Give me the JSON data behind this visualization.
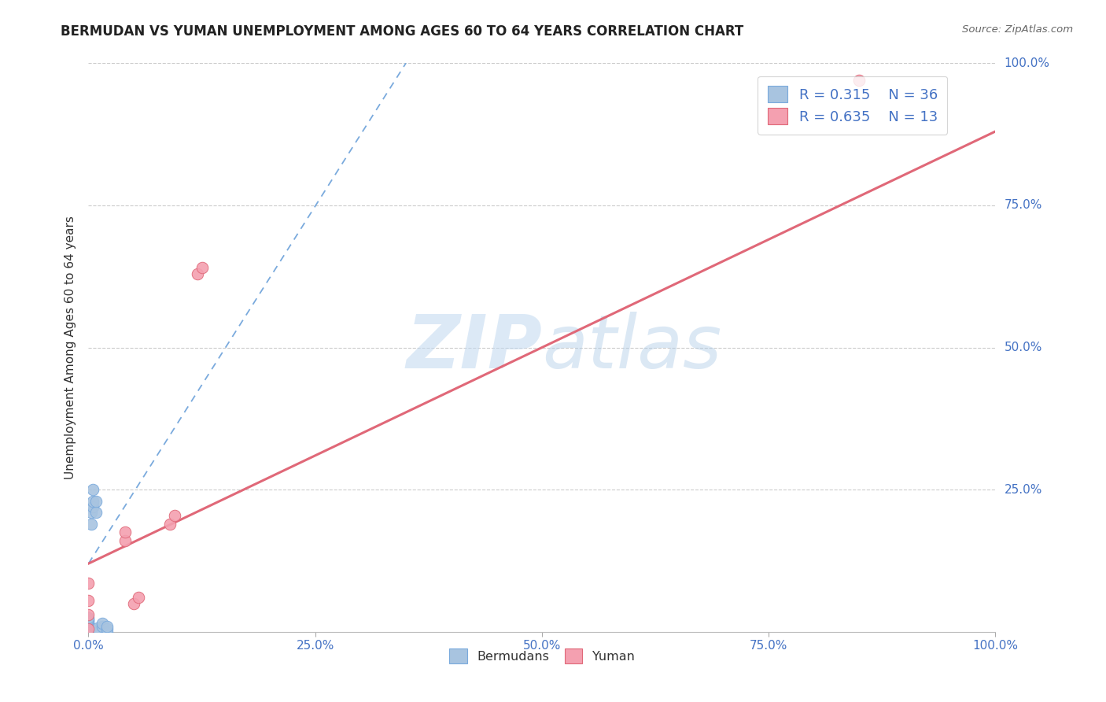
{
  "title": "BERMUDAN VS YUMAN UNEMPLOYMENT AMONG AGES 60 TO 64 YEARS CORRELATION CHART",
  "source": "Source: ZipAtlas.com",
  "ylabel": "Unemployment Among Ages 60 to 64 years",
  "watermark": "ZIPatlas",
  "legend_r_blue": "R = 0.315",
  "legend_n_blue": "N = 36",
  "legend_r_pink": "R = 0.635",
  "legend_n_pink": "N = 13",
  "legend_label_blue": "Bermudans",
  "legend_label_pink": "Yuman",
  "blue_color": "#a8c4e0",
  "pink_color": "#f4a0b0",
  "blue_line_color": "#7aaadd",
  "pink_line_color": "#e06878",
  "text_color_blue": "#4472c4",
  "title_color": "#222222",
  "xlim": [
    0,
    1
  ],
  "ylim": [
    0,
    1
  ],
  "xticks": [
    0.0,
    0.25,
    0.5,
    0.75,
    1.0
  ],
  "yticks": [
    0.25,
    0.5,
    0.75,
    1.0
  ],
  "xtick_labels": [
    "0.0%",
    "25.0%",
    "50.0%",
    "75.0%",
    "100.0%"
  ],
  "ytick_labels_right": [
    "25.0%",
    "50.0%",
    "75.0%",
    "100.0%"
  ],
  "blue_scatter_x": [
    0.0,
    0.0,
    0.0,
    0.0,
    0.0,
    0.0,
    0.0,
    0.0,
    0.0,
    0.0,
    0.0,
    0.0,
    0.0,
    0.0,
    0.0,
    0.0,
    0.0,
    0.0,
    0.0,
    0.0,
    0.003,
    0.003,
    0.005,
    0.005,
    0.005,
    0.008,
    0.008,
    0.01,
    0.01,
    0.01,
    0.01,
    0.015,
    0.015,
    0.02,
    0.02,
    0.02
  ],
  "blue_scatter_y": [
    0.0,
    0.0,
    0.0,
    0.0,
    0.0,
    0.0,
    0.0,
    0.002,
    0.003,
    0.005,
    0.006,
    0.007,
    0.008,
    0.01,
    0.012,
    0.015,
    0.018,
    0.02,
    0.022,
    0.025,
    0.19,
    0.21,
    0.22,
    0.23,
    0.25,
    0.21,
    0.23,
    0.0,
    0.002,
    0.004,
    0.006,
    0.01,
    0.015,
    0.0,
    0.005,
    0.01
  ],
  "pink_scatter_x": [
    0.0,
    0.0,
    0.0,
    0.04,
    0.04,
    0.05,
    0.055,
    0.09,
    0.095,
    0.85,
    0.12,
    0.125,
    0.0
  ],
  "pink_scatter_y": [
    0.03,
    0.055,
    0.085,
    0.16,
    0.175,
    0.05,
    0.06,
    0.19,
    0.205,
    0.97,
    0.63,
    0.64,
    0.005
  ],
  "blue_line_x0": 0.0,
  "blue_line_x1": 0.35,
  "blue_line_y0": 0.12,
  "blue_line_y1": 1.0,
  "pink_line_x0": 0.0,
  "pink_line_x1": 1.0,
  "pink_line_y0": 0.12,
  "pink_line_y1": 0.88,
  "dot_size": 110,
  "grid_color": "#cccccc",
  "grid_linestyle": "--"
}
